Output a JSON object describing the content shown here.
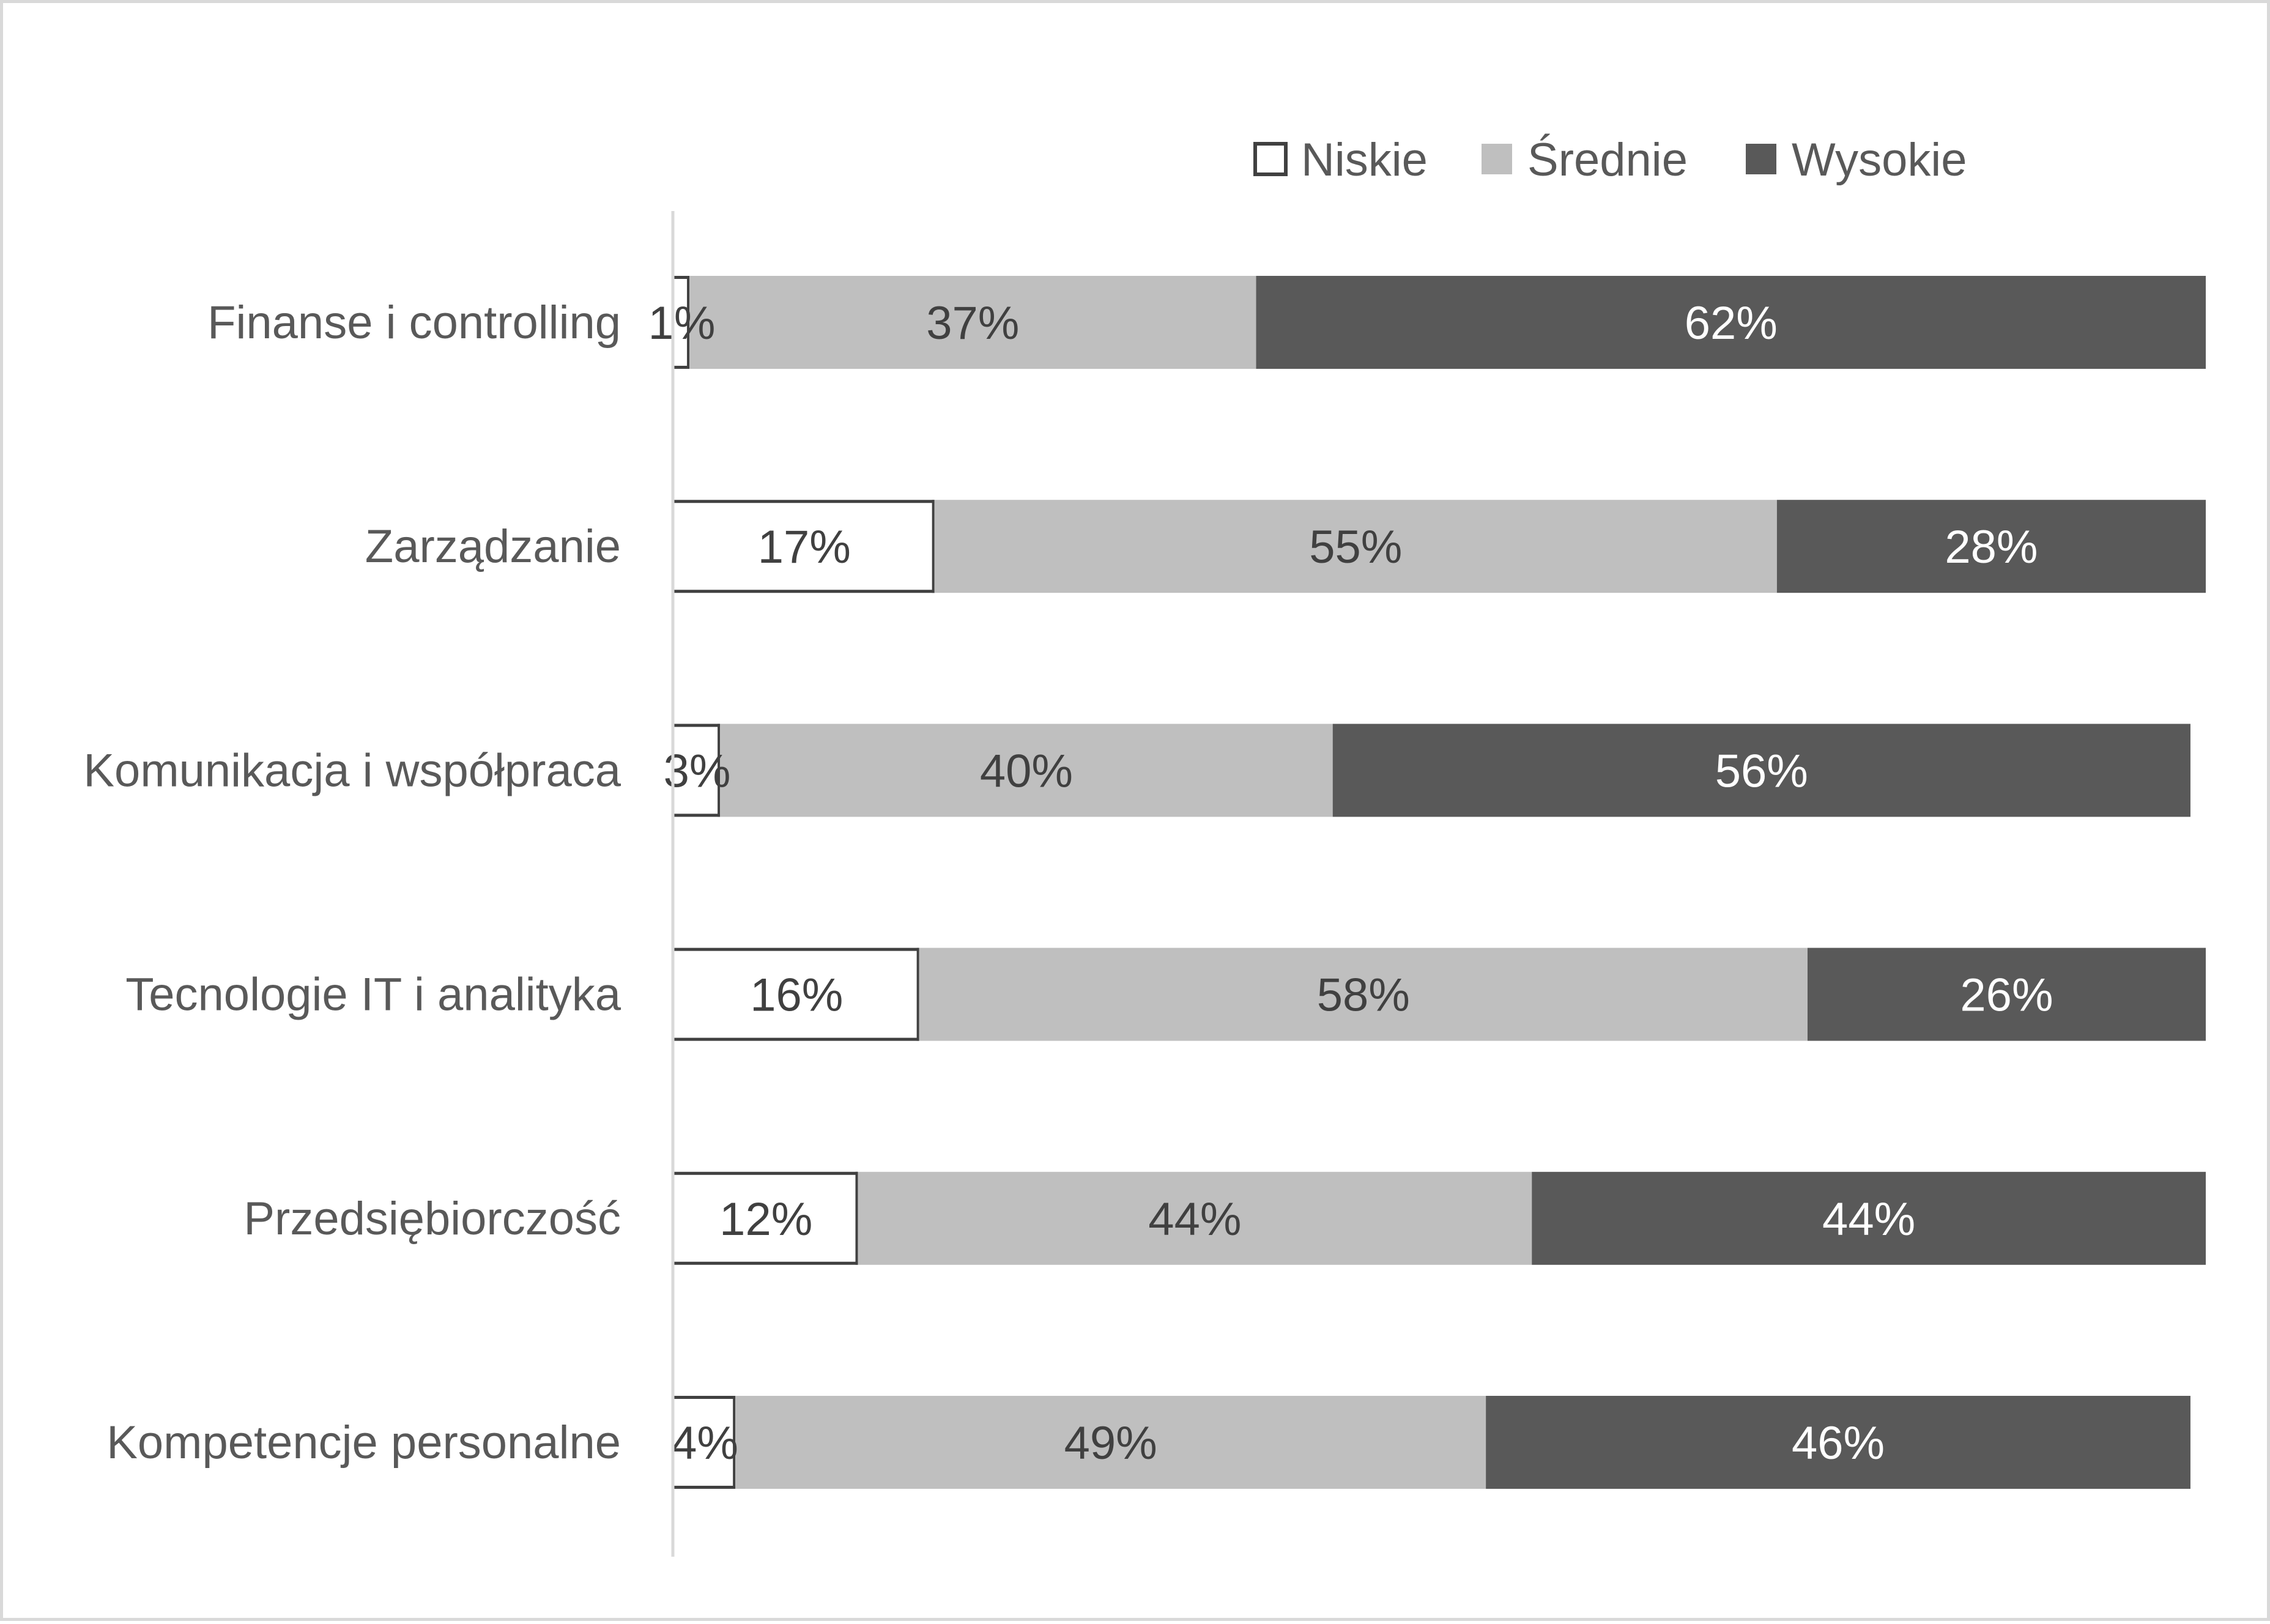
{
  "chart_data": {
    "type": "bar",
    "orientation": "horizontal",
    "stacked": "percent",
    "categories": [
      "Finanse i controlling",
      "Zarządzanie",
      "Komunikacja i współpraca",
      "Tecnologie IT i analityka",
      "Przedsiębiorczość",
      "Kompetencje personalne"
    ],
    "series": [
      {
        "name": "Niskie",
        "values": [
          1,
          17,
          3,
          16,
          12,
          4
        ],
        "labels": [
          "1%",
          "17%",
          "3%",
          "16%",
          "12%",
          "4%"
        ],
        "fill": "#ffffff",
        "stroke": "#404040",
        "label_color": "#404040"
      },
      {
        "name": "Średnie",
        "values": [
          37,
          55,
          40,
          58,
          44,
          49
        ],
        "labels": [
          "37%",
          "55%",
          "40%",
          "58%",
          "44%",
          "49%"
        ],
        "fill": "#bfbfbf",
        "label_color": "#404040"
      },
      {
        "name": "Wysokie",
        "values": [
          62,
          28,
          56,
          26,
          44,
          46
        ],
        "labels": [
          "62%",
          "28%",
          "56%",
          "26%",
          "44%",
          "46%"
        ],
        "fill": "#595959",
        "label_color": "#ffffff"
      }
    ],
    "xlim": [
      0,
      100
    ],
    "legend_position": "top-right",
    "grid": false,
    "title": "",
    "xlabel": "",
    "ylabel": ""
  },
  "colors": {
    "frame_border": "#d9d9d9",
    "axis_line": "#d9d9d9",
    "category_text": "#595959",
    "legend_text": "#595959"
  }
}
